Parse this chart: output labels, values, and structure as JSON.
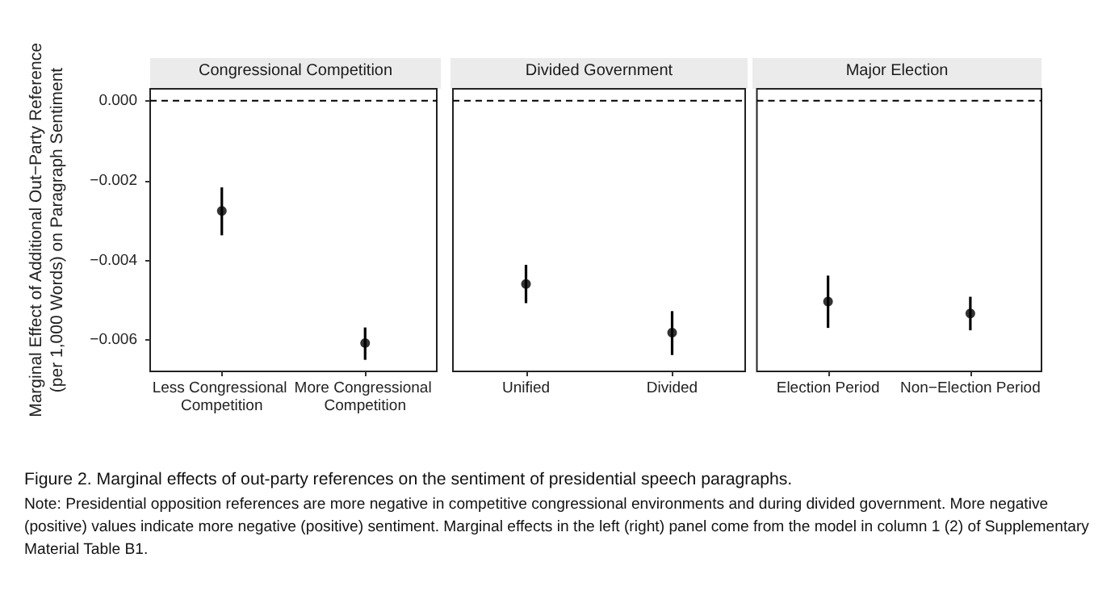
{
  "chart_data": [
    {
      "type": "scatter",
      "title": "Congressional Competition",
      "ylabel": "Marginal Effect of Additional Out−Party Reference\n(per 1,000 Words) on Paragraph Sentiment",
      "categories": [
        "Less Congressional Competition",
        "More Congressional Competition"
      ],
      "values": [
        -0.00276,
        -0.00607
      ],
      "errors": [
        [
          -0.00337,
          -0.00217
        ],
        [
          -0.00649,
          -0.00568
        ]
      ],
      "color": "#000000",
      "marker": "circle",
      "ylim": [
        -0.00678,
        0.0003
      ],
      "yticks": [
        {
          "value": 0,
          "label": "0.000"
        },
        {
          "value": -0.002,
          "label": "−0.002"
        },
        {
          "value": -0.004,
          "label": "−0.004"
        },
        {
          "value": -0.006,
          "label": "−0.006"
        }
      ],
      "ref_lines": [
        {
          "axis": "y",
          "value": 0,
          "line_style": "dashed",
          "color": "#000000"
        }
      ],
      "grid": false,
      "annotations": [
        "Figure 2.  Marginal effects of out-party references on the sentiment of presidential speech paragraphs.",
        "Note: Presidential opposition references are more negative in competitive congressional environments and during divided government. More negative (positive) values indicate more negative (positive) sentiment. Marginal effects in the left (right) panel come from the model in column 1 (2) of Supplementary Material Table B1."
      ]
    },
    {
      "type": "scatter",
      "title": "Divided Government",
      "categories": [
        "Unified",
        "Divided"
      ],
      "values": [
        -0.00459,
        -0.00581
      ],
      "errors": [
        [
          -0.00507,
          -0.00411
        ],
        [
          -0.00637,
          -0.00527
        ]
      ],
      "color": "#000000",
      "marker": "circle",
      "ylim": [
        -0.00678,
        0.0003
      ],
      "tick_labels": "x",
      "ref_lines": [
        {
          "axis": "y",
          "value": 0,
          "line_style": "dashed",
          "color": "#000000"
        }
      ],
      "grid": false
    },
    {
      "type": "scatter",
      "title": "Major Election",
      "categories": [
        "Election Period",
        "Non−Election Period"
      ],
      "values": [
        -0.00503,
        -0.00533
      ],
      "errors": [
        [
          -0.00569,
          -0.00438
        ],
        [
          -0.00575,
          -0.00491
        ]
      ],
      "color": "#000000",
      "marker": "circle",
      "ylim": [
        -0.00678,
        0.0003
      ],
      "tick_labels": "x",
      "ref_lines": [
        {
          "axis": "y",
          "value": 0,
          "line_style": "dashed",
          "color": "#000000"
        }
      ],
      "grid": false
    }
  ]
}
